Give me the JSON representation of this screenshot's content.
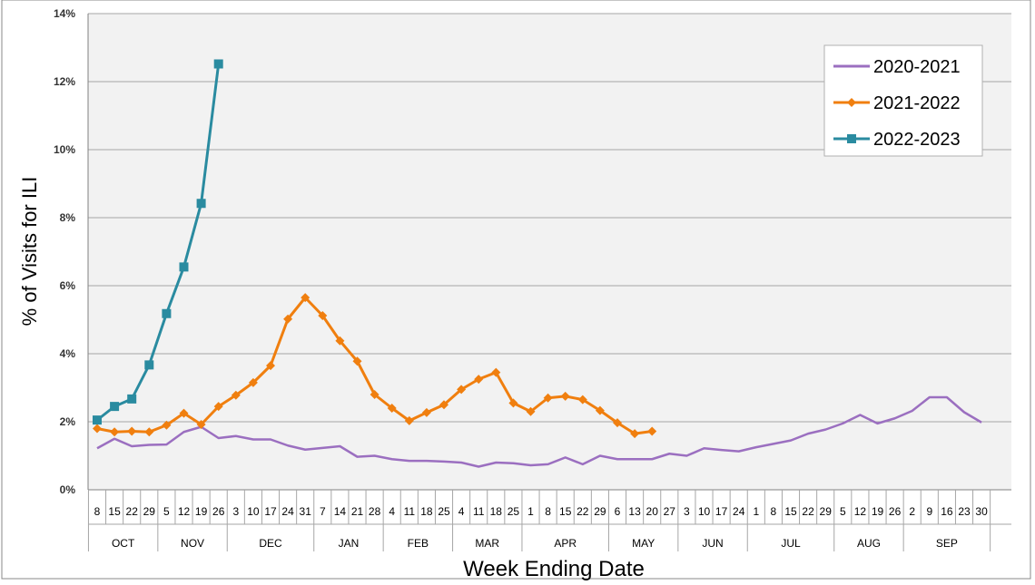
{
  "chart_data": {
    "type": "line",
    "xlabel": "Week Ending  Date",
    "ylabel": "% of Visits for ILI",
    "ylim": [
      0,
      14
    ],
    "yticks": [
      "0%",
      "2%",
      "4%",
      "6%",
      "8%",
      "10%",
      "12%",
      "14%"
    ],
    "ytick_values": [
      0,
      2,
      4,
      6,
      8,
      10,
      12,
      14
    ],
    "grid": true,
    "legend_position": "top-right",
    "week_labels": [
      "8",
      "15",
      "22",
      "29",
      "5",
      "12",
      "19",
      "26",
      "3",
      "10",
      "17",
      "24",
      "31",
      "7",
      "14",
      "21",
      "28",
      "4",
      "11",
      "18",
      "25",
      "4",
      "11",
      "18",
      "25",
      "1",
      "8",
      "15",
      "22",
      "29",
      "6",
      "13",
      "20",
      "27",
      "3",
      "10",
      "17",
      "24",
      "1",
      "8",
      "15",
      "22",
      "29",
      "5",
      "12",
      "19",
      "26",
      "2",
      "9",
      "16",
      "23",
      "30"
    ],
    "months": [
      {
        "label": "OCT",
        "weeks": 4
      },
      {
        "label": "NOV",
        "weeks": 4
      },
      {
        "label": "DEC",
        "weeks": 5
      },
      {
        "label": "JAN",
        "weeks": 4
      },
      {
        "label": "FEB",
        "weeks": 4
      },
      {
        "label": "MAR",
        "weeks": 4
      },
      {
        "label": "APR",
        "weeks": 5
      },
      {
        "label": "MAY",
        "weeks": 4
      },
      {
        "label": "JUN",
        "weeks": 4
      },
      {
        "label": "JUL",
        "weeks": 5
      },
      {
        "label": "AUG",
        "weeks": 4
      },
      {
        "label": "SEP",
        "weeks": 5
      }
    ],
    "series": [
      {
        "name": "2020-2021",
        "color": "#9b6fc0",
        "marker": "none",
        "values": [
          1.22,
          1.5,
          1.28,
          1.32,
          1.33,
          1.7,
          1.85,
          1.52,
          1.58,
          1.48,
          1.48,
          1.3,
          1.18,
          1.23,
          1.28,
          0.97,
          1.0,
          0.9,
          0.85,
          0.85,
          0.83,
          0.8,
          0.68,
          0.8,
          0.78,
          0.72,
          0.75,
          0.95,
          0.75,
          1.0,
          0.9,
          0.9,
          0.9,
          1.06,
          1.0,
          1.22,
          1.17,
          1.13,
          1.25,
          1.35,
          1.45,
          1.65,
          1.77,
          1.95,
          2.2,
          1.95,
          2.1,
          2.32,
          2.72,
          2.72,
          2.28,
          1.98
        ]
      },
      {
        "name": "2021-2022",
        "color": "#f07f0f",
        "marker": "diamond",
        "values": [
          1.8,
          1.7,
          1.72,
          1.7,
          1.9,
          2.25,
          1.92,
          2.45,
          2.78,
          3.15,
          3.65,
          5.02,
          5.65,
          5.12,
          4.38,
          3.78,
          2.8,
          2.4,
          2.03,
          2.27,
          2.5,
          2.95,
          3.25,
          3.45,
          2.55,
          2.3,
          2.7,
          2.75,
          2.65,
          2.33,
          1.97,
          1.65,
          1.72
        ]
      },
      {
        "name": "2022-2023",
        "color": "#2a8ba0",
        "marker": "square",
        "values": [
          2.05,
          2.45,
          2.67,
          3.67,
          5.18,
          6.55,
          8.42,
          12.52
        ]
      }
    ]
  }
}
